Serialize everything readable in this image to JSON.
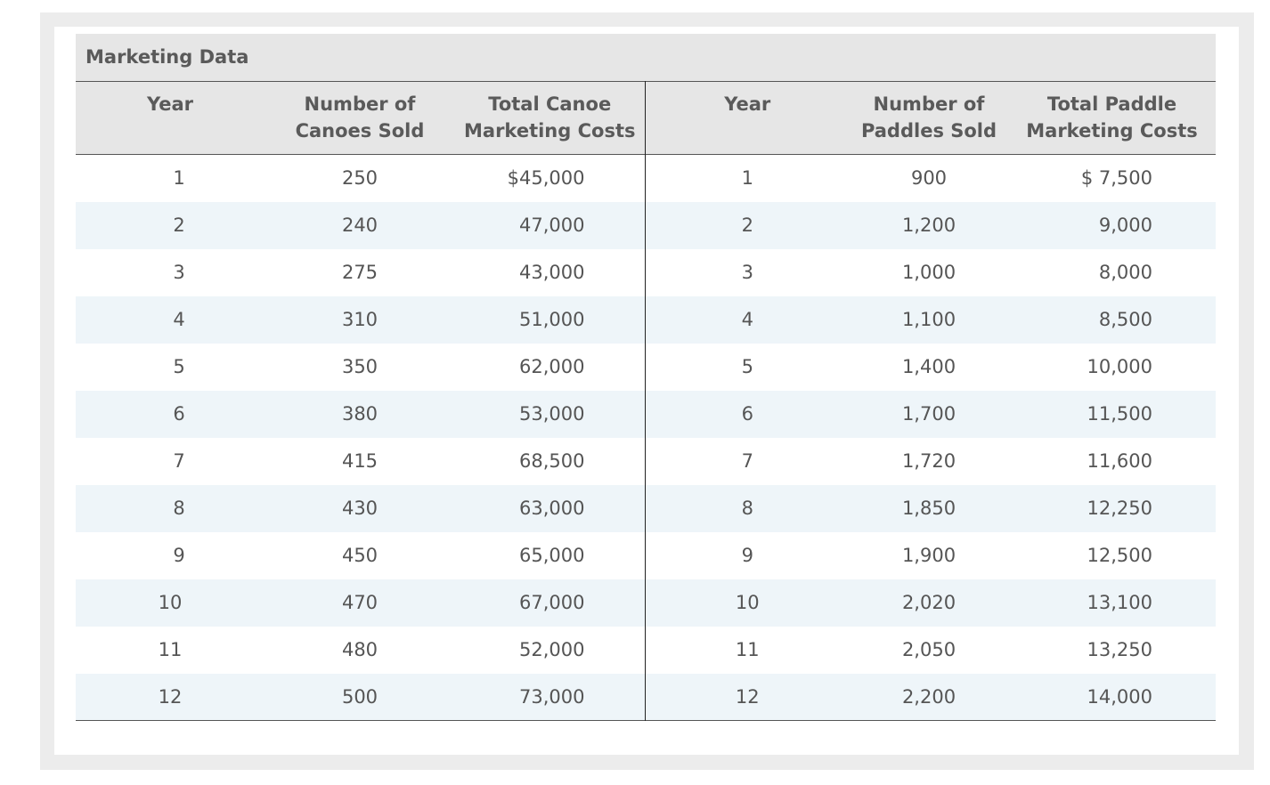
{
  "table": {
    "caption": "Marketing Data",
    "headers": [
      [
        "Year"
      ],
      [
        "Number of",
        "Canoes Sold"
      ],
      [
        "Total Canoe",
        "Marketing Costs"
      ],
      [
        "Year"
      ],
      [
        "Number of",
        "Paddles Sold"
      ],
      [
        "Total Paddle",
        "Marketing Costs"
      ]
    ],
    "rows": [
      [
        "1",
        "250",
        "$45,000",
        "1",
        "900",
        "$ 7,500"
      ],
      [
        "2",
        "240",
        "47,000",
        "2",
        "1,200",
        "9,000"
      ],
      [
        "3",
        "275",
        "43,000",
        "3",
        "1,000",
        "8,000"
      ],
      [
        "4",
        "310",
        "51,000",
        "4",
        "1,100",
        "8,500"
      ],
      [
        "5",
        "350",
        "62,000",
        "5",
        "1,400",
        "10,000"
      ],
      [
        "6",
        "380",
        "53,000",
        "6",
        "1,700",
        "11,500"
      ],
      [
        "7",
        "415",
        "68,500",
        "7",
        "1,720",
        "11,600"
      ],
      [
        "8",
        "430",
        "63,000",
        "8",
        "1,850",
        "12,250"
      ],
      [
        "9",
        "450",
        "65,000",
        "9",
        "1,900",
        "12,500"
      ],
      [
        "10",
        "470",
        "67,000",
        "10",
        "2,020",
        "13,100"
      ],
      [
        "11",
        "480",
        "52,000",
        "11",
        "2,050",
        "13,250"
      ],
      [
        "12",
        "500",
        "73,000",
        "12",
        "2,200",
        "14,000"
      ]
    ]
  }
}
